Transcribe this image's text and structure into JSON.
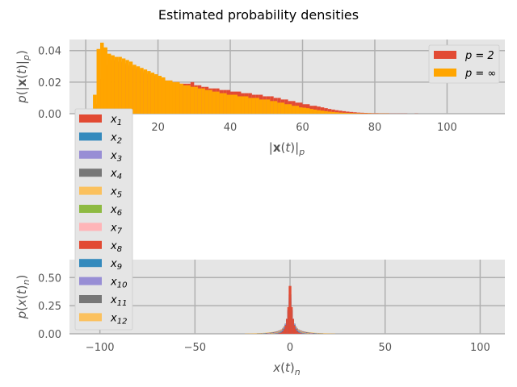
{
  "figure": {
    "title": "Estimated probability densities"
  },
  "chart_data": [
    {
      "type": "bar",
      "name": "norm-histogram",
      "xlabel": "|x(t)|_p",
      "ylabel": "p(|x(t)|_p)",
      "xlim": [
        -4.5,
        116
      ],
      "ylim": [
        0,
        0.047
      ],
      "xticks": [
        0,
        20,
        40,
        60,
        80,
        100
      ],
      "yticks": [
        0.0,
        0.02,
        0.04
      ],
      "ytick_labels": [
        "0.00",
        "0.02",
        "0.04"
      ],
      "grid": true,
      "legend_position": "upper-right",
      "bin_width": 1,
      "x_start": 1,
      "series": [
        {
          "name": "p = 2",
          "color": "#E24A33",
          "values": [
            0.0,
            0.0,
            0.006,
            0.022,
            0.031,
            0.034,
            0.034,
            0.033,
            0.033,
            0.032,
            0.031,
            0.03,
            0.029,
            0.028,
            0.027,
            0.026,
            0.025,
            0.025,
            0.024,
            0.023,
            0.022,
            0.021,
            0.021,
            0.02,
            0.02,
            0.019,
            0.019,
            0.019,
            0.02,
            0.018,
            0.018,
            0.017,
            0.017,
            0.016,
            0.016,
            0.016,
            0.015,
            0.015,
            0.015,
            0.014,
            0.014,
            0.014,
            0.013,
            0.013,
            0.013,
            0.012,
            0.012,
            0.012,
            0.011,
            0.011,
            0.011,
            0.01,
            0.01,
            0.009,
            0.009,
            0.008,
            0.008,
            0.007,
            0.007,
            0.006,
            0.006,
            0.005,
            0.005,
            0.0045,
            0.004,
            0.0035,
            0.003,
            0.0026,
            0.0022,
            0.0019,
            0.0016,
            0.0013,
            0.0011,
            0.0009,
            0.0007,
            0.0006,
            0.0005,
            0.0004,
            0.0003,
            0.0003,
            0.0002,
            0.0002,
            0.0002,
            0.0001,
            0.0001,
            0.0001,
            0.0001,
            0.0001,
            0.0,
            0.0,
            0.0001,
            0.0,
            0.0,
            0.0,
            0.0,
            0.0,
            0.0,
            0.0,
            0.0,
            0.0,
            0.0,
            0.0,
            0.0,
            0.0,
            0.0,
            0.0,
            0.0,
            0.0,
            0.0,
            0.0,
            0.0
          ]
        },
        {
          "name": "p = ∞",
          "color": "#FFA500",
          "values": [
            0.0,
            0.012,
            0.041,
            0.045,
            0.042,
            0.038,
            0.037,
            0.036,
            0.036,
            0.035,
            0.034,
            0.033,
            0.031,
            0.03,
            0.029,
            0.028,
            0.027,
            0.026,
            0.025,
            0.024,
            0.023,
            0.021,
            0.021,
            0.02,
            0.02,
            0.019,
            0.018,
            0.018,
            0.017,
            0.017,
            0.016,
            0.016,
            0.015,
            0.015,
            0.014,
            0.014,
            0.013,
            0.013,
            0.012,
            0.012,
            0.012,
            0.011,
            0.011,
            0.011,
            0.01,
            0.01,
            0.01,
            0.009,
            0.009,
            0.009,
            0.008,
            0.008,
            0.007,
            0.007,
            0.006,
            0.006,
            0.005,
            0.005,
            0.004,
            0.0038,
            0.0035,
            0.003,
            0.0026,
            0.0022,
            0.0019,
            0.0016,
            0.0013,
            0.0011,
            0.0009,
            0.0007,
            0.0006,
            0.0005,
            0.0004,
            0.0003,
            0.0003,
            0.0002,
            0.0002,
            0.0002,
            0.0001,
            0.0001,
            0.0001,
            0.0001,
            0.0001,
            0.0,
            0.0,
            0.0,
            0.0,
            0.0,
            0.0,
            0.0,
            0.0,
            0.0,
            0.0,
            0.0,
            0.0,
            0.0,
            0.0,
            0.0,
            0.0,
            0.0,
            0.0,
            0.0,
            0.0,
            0.0,
            0.0,
            0.0,
            0.0,
            0.0,
            0.0,
            0.0,
            0.0
          ]
        }
      ]
    },
    {
      "type": "bar",
      "name": "component-histogram",
      "xlabel": "x(t)_n",
      "ylabel": "p(x(t)_n)",
      "xlim": [
        -116,
        113
      ],
      "ylim": [
        0,
        0.66
      ],
      "xticks": [
        -100,
        -50,
        0,
        50,
        100
      ],
      "xtick_labels": [
        "−100",
        "−50",
        "0",
        "50",
        "100"
      ],
      "yticks": [
        0.0,
        0.25,
        0.5
      ],
      "ytick_labels": [
        "0.00",
        "0.25",
        "0.50"
      ],
      "grid": true,
      "legend_position": "outside-left",
      "series": [
        {
          "name": "x1",
          "color": "#E24A33",
          "peak": 0.57,
          "width": 1.2
        },
        {
          "name": "x2",
          "color": "#348ABD",
          "peak": 0.45,
          "width": 1.4
        },
        {
          "name": "x3",
          "color": "#988ED5",
          "peak": 0.4,
          "width": 1.6
        },
        {
          "name": "x4",
          "color": "#777777",
          "peak": 0.35,
          "width": 1.8
        },
        {
          "name": "x5",
          "color": "#FBC15E",
          "peak": 0.3,
          "width": 2.0
        },
        {
          "name": "x6",
          "color": "#8EBA42",
          "peak": 0.26,
          "width": 2.2
        },
        {
          "name": "x7",
          "color": "#FFB5B8",
          "peak": 0.23,
          "width": 2.5
        },
        {
          "name": "x8",
          "color": "#E24A33",
          "peak": 0.2,
          "width": 2.8
        },
        {
          "name": "x9",
          "color": "#348ABD",
          "peak": 0.17,
          "width": 3.1
        },
        {
          "name": "x10",
          "color": "#988ED5",
          "peak": 0.14,
          "width": 3.5
        },
        {
          "name": "x11",
          "color": "#777777",
          "peak": 0.1,
          "width": 4.5
        },
        {
          "name": "x12",
          "color": "#FBC15E",
          "peak": 0.06,
          "width": 7.0
        }
      ]
    }
  ]
}
